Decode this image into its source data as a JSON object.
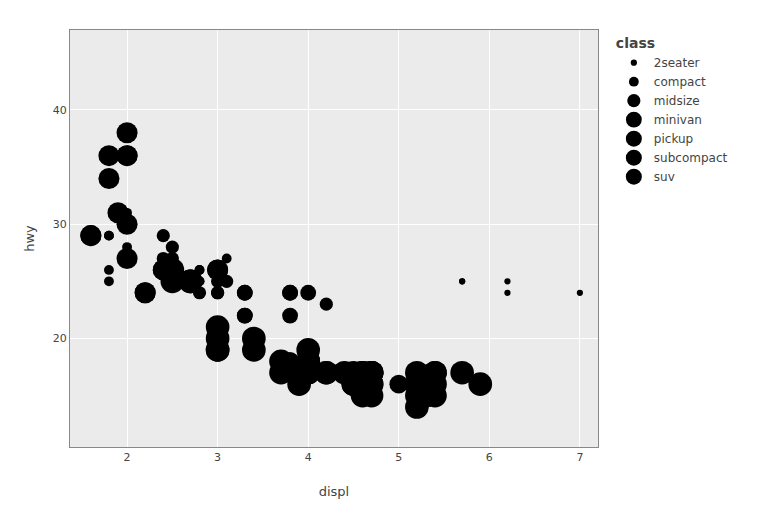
{
  "chart_data": {
    "type": "scatter",
    "title": "class",
    "xlabel": "displ",
    "ylabel": "hwy",
    "color": "#000000",
    "xlim": [
      1.37,
      7.2
    ],
    "ylim": [
      10.5,
      47
    ],
    "xticks": [
      2,
      3,
      4,
      5,
      6,
      7
    ],
    "yticks": [
      20,
      30,
      40
    ],
    "grid": true,
    "legend": "right",
    "series": [
      {
        "name": "2seater",
        "size": 20,
        "x": [
          5.7,
          5.7,
          6.2,
          6.2,
          7.0
        ],
        "values": [
          25,
          25,
          25,
          24,
          24
        ]
      },
      {
        "name": "compact",
        "size": 50,
        "x": [
          1.8,
          1.8,
          2.0,
          2.0,
          2.8,
          2.8,
          3.1,
          1.8,
          1.8,
          2.0,
          2.0,
          2.8,
          2.8,
          3.1,
          3.1
        ],
        "values": [
          29,
          29,
          31,
          30,
          26,
          26,
          27,
          26,
          25,
          28,
          27,
          25,
          25,
          25,
          25
        ]
      },
      {
        "name": "midsize",
        "size": 90,
        "x": [
          2.8,
          3.1,
          4.2,
          2.4,
          2.4,
          3.0,
          3.0,
          2.5,
          2.5,
          3.0,
          3.0
        ],
        "values": [
          24,
          25,
          23,
          29,
          27,
          24,
          24,
          28,
          27,
          25,
          26
        ]
      },
      {
        "name": "minivan",
        "size": 130,
        "x": [
          3.3,
          3.3,
          3.3,
          3.3,
          3.8,
          3.8,
          3.8,
          4.0
        ],
        "values": [
          24,
          24,
          22,
          22,
          22,
          24,
          24,
          24
        ]
      },
      {
        "name": "pickup",
        "size": 180,
        "x": [
          3.8,
          3.8,
          3.8,
          4.0,
          4.0,
          4.0,
          4.7,
          4.7,
          4.7,
          4.7,
          5.2,
          5.2,
          5.7,
          5.9,
          4.6,
          5.4,
          5.4,
          4.0,
          4.0,
          4.0,
          4.6,
          5.0,
          5.4,
          5.4
        ],
        "values": [
          18,
          17,
          17,
          18,
          17,
          17,
          16,
          16,
          16,
          17,
          15,
          15,
          17,
          16,
          17,
          16,
          17,
          18,
          17,
          17,
          16,
          16,
          17,
          17
        ]
      },
      {
        "name": "subcompact",
        "size": 230,
        "x": [
          2.2,
          2.2,
          2.4,
          2.4,
          3.0,
          3.0,
          1.8,
          1.8,
          2.0,
          2.0,
          1.9,
          2.0,
          2.0,
          2.0,
          1.6,
          1.6
        ],
        "values": [
          24,
          24,
          26,
          26,
          26,
          26,
          34,
          36,
          27,
          30,
          31,
          38,
          36,
          36,
          29,
          29
        ]
      },
      {
        "name": "suv",
        "size": 290,
        "x": [
          2.7,
          2.7,
          2.7,
          3.4,
          3.4,
          4.0,
          4.7,
          4.7,
          4.7,
          4.7,
          5.2,
          5.2,
          5.7,
          5.9,
          4.6,
          4.7,
          4.7,
          4.7,
          5.2,
          5.2,
          5.2,
          5.2,
          5.3,
          5.3,
          5.3,
          4.6,
          4.6,
          4.6,
          4.6,
          5.4,
          5.4,
          5.4,
          5.4,
          4.0,
          4.0,
          4.0,
          4.0,
          4.5,
          4.5,
          4.5,
          4.5,
          3.0,
          3.0,
          3.0,
          3.0,
          4.0,
          4.0,
          4.0,
          4.0,
          3.7,
          3.7,
          3.9,
          3.9,
          4.2,
          4.2,
          4.4,
          4.6,
          2.5,
          2.5
        ],
        "values": [
          25,
          25,
          25,
          20,
          19,
          17,
          16,
          16,
          17,
          15,
          15,
          14,
          17,
          16,
          17,
          17,
          17,
          17,
          16,
          16,
          17,
          16,
          16,
          15,
          15,
          16,
          16,
          17,
          17,
          15,
          16,
          17,
          17,
          19,
          18,
          17,
          17,
          17,
          16,
          16,
          16,
          21,
          20,
          19,
          19,
          18,
          18,
          17,
          18,
          18,
          17,
          17,
          16,
          17,
          17,
          17,
          15,
          26,
          25
        ]
      }
    ]
  }
}
